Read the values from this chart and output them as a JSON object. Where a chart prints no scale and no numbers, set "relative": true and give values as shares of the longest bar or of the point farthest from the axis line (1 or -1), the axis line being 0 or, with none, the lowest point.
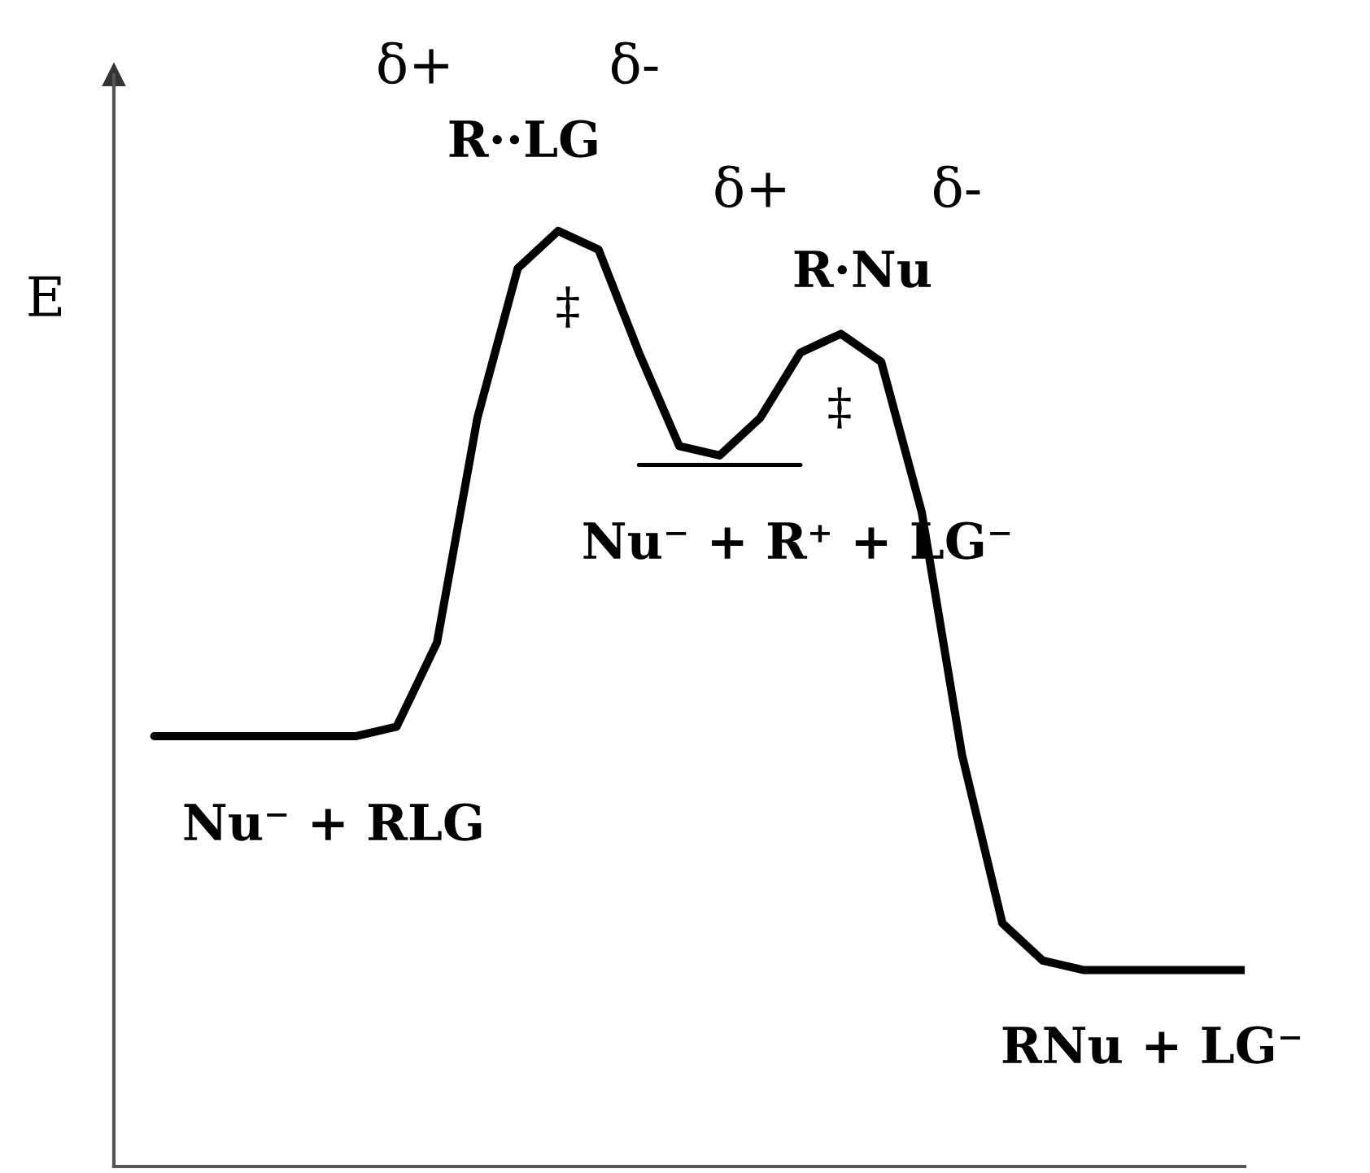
{
  "chart_data": {
    "type": "line",
    "relative": true,
    "ylabel": "E",
    "categories": [
      null,
      null,
      null,
      null,
      null,
      null,
      null,
      null,
      null,
      null,
      null,
      null,
      null,
      null,
      null,
      null,
      null,
      null,
      null,
      null,
      null,
      null,
      null,
      null,
      null,
      null,
      null,
      null
    ],
    "series": [
      {
        "color": "#000000",
        "values": [
          0.46,
          0.46,
          0.46,
          0.46,
          0.46,
          0.46,
          0.47,
          0.56,
          0.8,
          0.96,
          1.0,
          0.98,
          0.87,
          0.77,
          0.76,
          0.8,
          0.87,
          0.89,
          0.86,
          0.7,
          0.44,
          0.26,
          0.22,
          0.21,
          0.21,
          0.21,
          0.21,
          0.21
        ]
      },
      {
        "color": "#000000",
        "values": [
          null,
          null,
          null,
          null,
          null,
          null,
          null,
          null,
          null,
          null,
          null,
          null,
          0.75,
          0.75,
          0.75,
          0.75,
          0.75,
          null,
          null,
          null,
          null,
          null,
          null,
          null,
          null,
          null,
          null,
          null
        ]
      }
    ],
    "annotations": [
      "δ+",
      "δ-",
      "R··LG",
      "δ+",
      "δ-",
      "R·Nu",
      "‡",
      "‡",
      "Nu⁻ + R⁺ + LG⁻",
      "Nu⁻ + RLG",
      "RNu + LG⁻"
    ]
  }
}
